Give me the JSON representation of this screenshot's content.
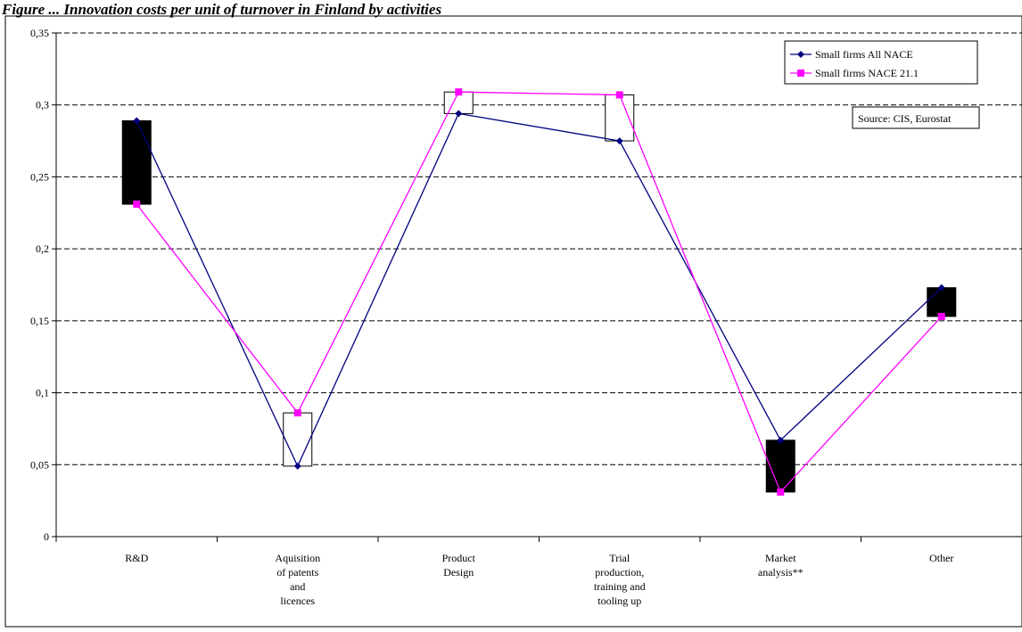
{
  "caption": "Figure ... Innovation costs per unit of turnover in Finland by activities",
  "chart_data": {
    "type": "line",
    "categories": [
      [
        "R&D"
      ],
      [
        "Aquisition",
        "of patents",
        "and",
        "licences"
      ],
      [
        "Product",
        "Design"
      ],
      [
        "Trial",
        "production,",
        "training and",
        "tooling up"
      ],
      [
        "Market",
        "analysis**"
      ],
      [
        "Other"
      ]
    ],
    "series": [
      {
        "name": "Small firms All NACE",
        "color": "#000080",
        "marker": "diamond",
        "values": [
          0.289,
          0.049,
          0.294,
          0.275,
          0.067,
          0.173
        ]
      },
      {
        "name": "Small firms NACE 21.1",
        "color": "#ff00ff",
        "marker": "square",
        "values": [
          0.231,
          0.086,
          0.309,
          0.307,
          0.031,
          0.153
        ]
      }
    ],
    "updown_bars": {
      "up_color": "#ffffff",
      "down_color": "#000000"
    },
    "ylim": [
      0,
      0.35
    ],
    "yticks": [
      "0",
      "0,05",
      "0,1",
      "0,15",
      "0,2",
      "0,25",
      "0,3",
      "0,35"
    ],
    "grid": "horizontal dashed",
    "legend_position": "top-right",
    "annotation": "Source: CIS, Eurostat",
    "xlabel": "",
    "ylabel": ""
  }
}
